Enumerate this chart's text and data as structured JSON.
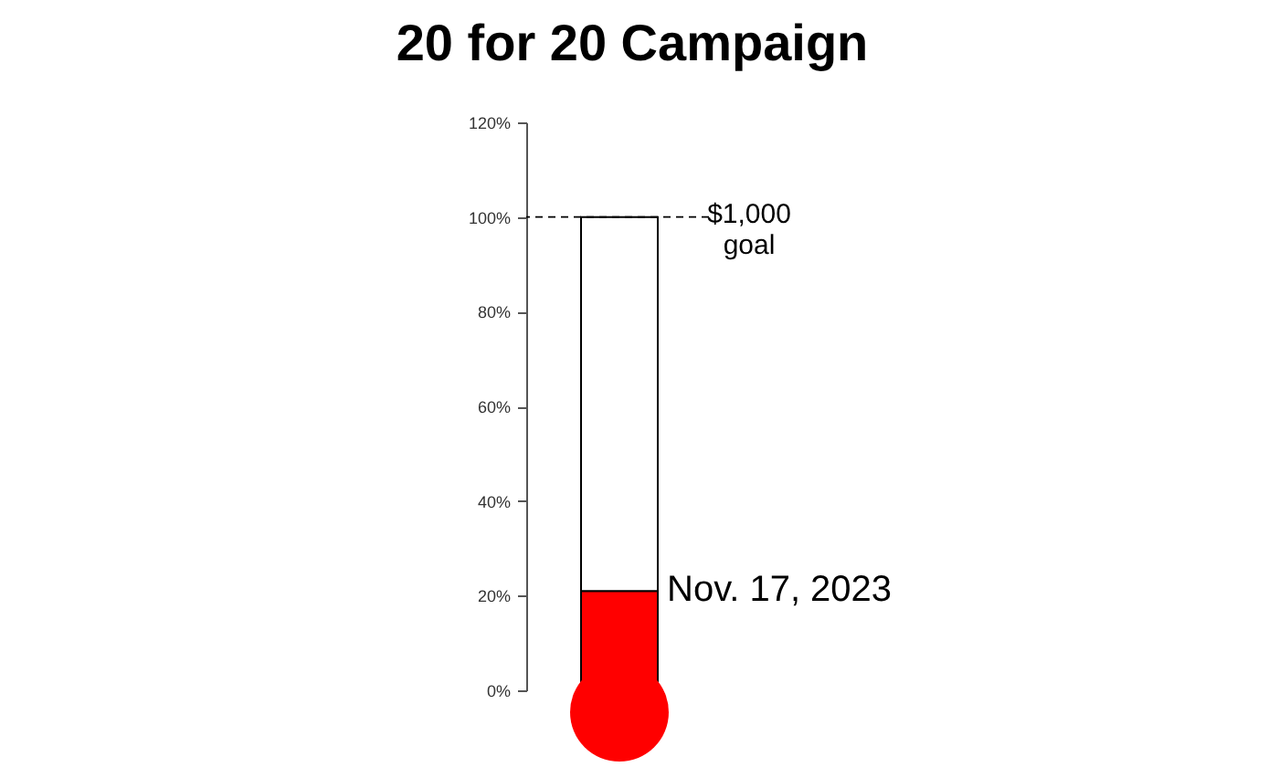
{
  "chart_data": {
    "type": "bar",
    "title": "20 for 20 Campaign",
    "categories": [
      null
    ],
    "stacked": true,
    "series": [
      {
        "color": "#ff0000",
        "values": [
          21
        ]
      },
      {
        "color": "#ffffff",
        "values": [
          79
        ]
      }
    ],
    "ylim": [
      0,
      120
    ],
    "yticks": [
      {
        "value": 0,
        "label": "0%"
      },
      {
        "value": 20,
        "label": "20%"
      },
      {
        "value": 40,
        "label": "40%"
      },
      {
        "value": 60,
        "label": "60%"
      },
      {
        "value": 80,
        "label": "80%"
      },
      {
        "value": 100,
        "label": "100%"
      },
      {
        "value": 120,
        "label": "120%"
      }
    ],
    "ref_lines": [
      {
        "axis": "y",
        "value": 100,
        "label": "$1,000\ngoal",
        "line_style": "dashed"
      }
    ],
    "annotations": [
      "Nov. 17, 2023"
    ]
  }
}
